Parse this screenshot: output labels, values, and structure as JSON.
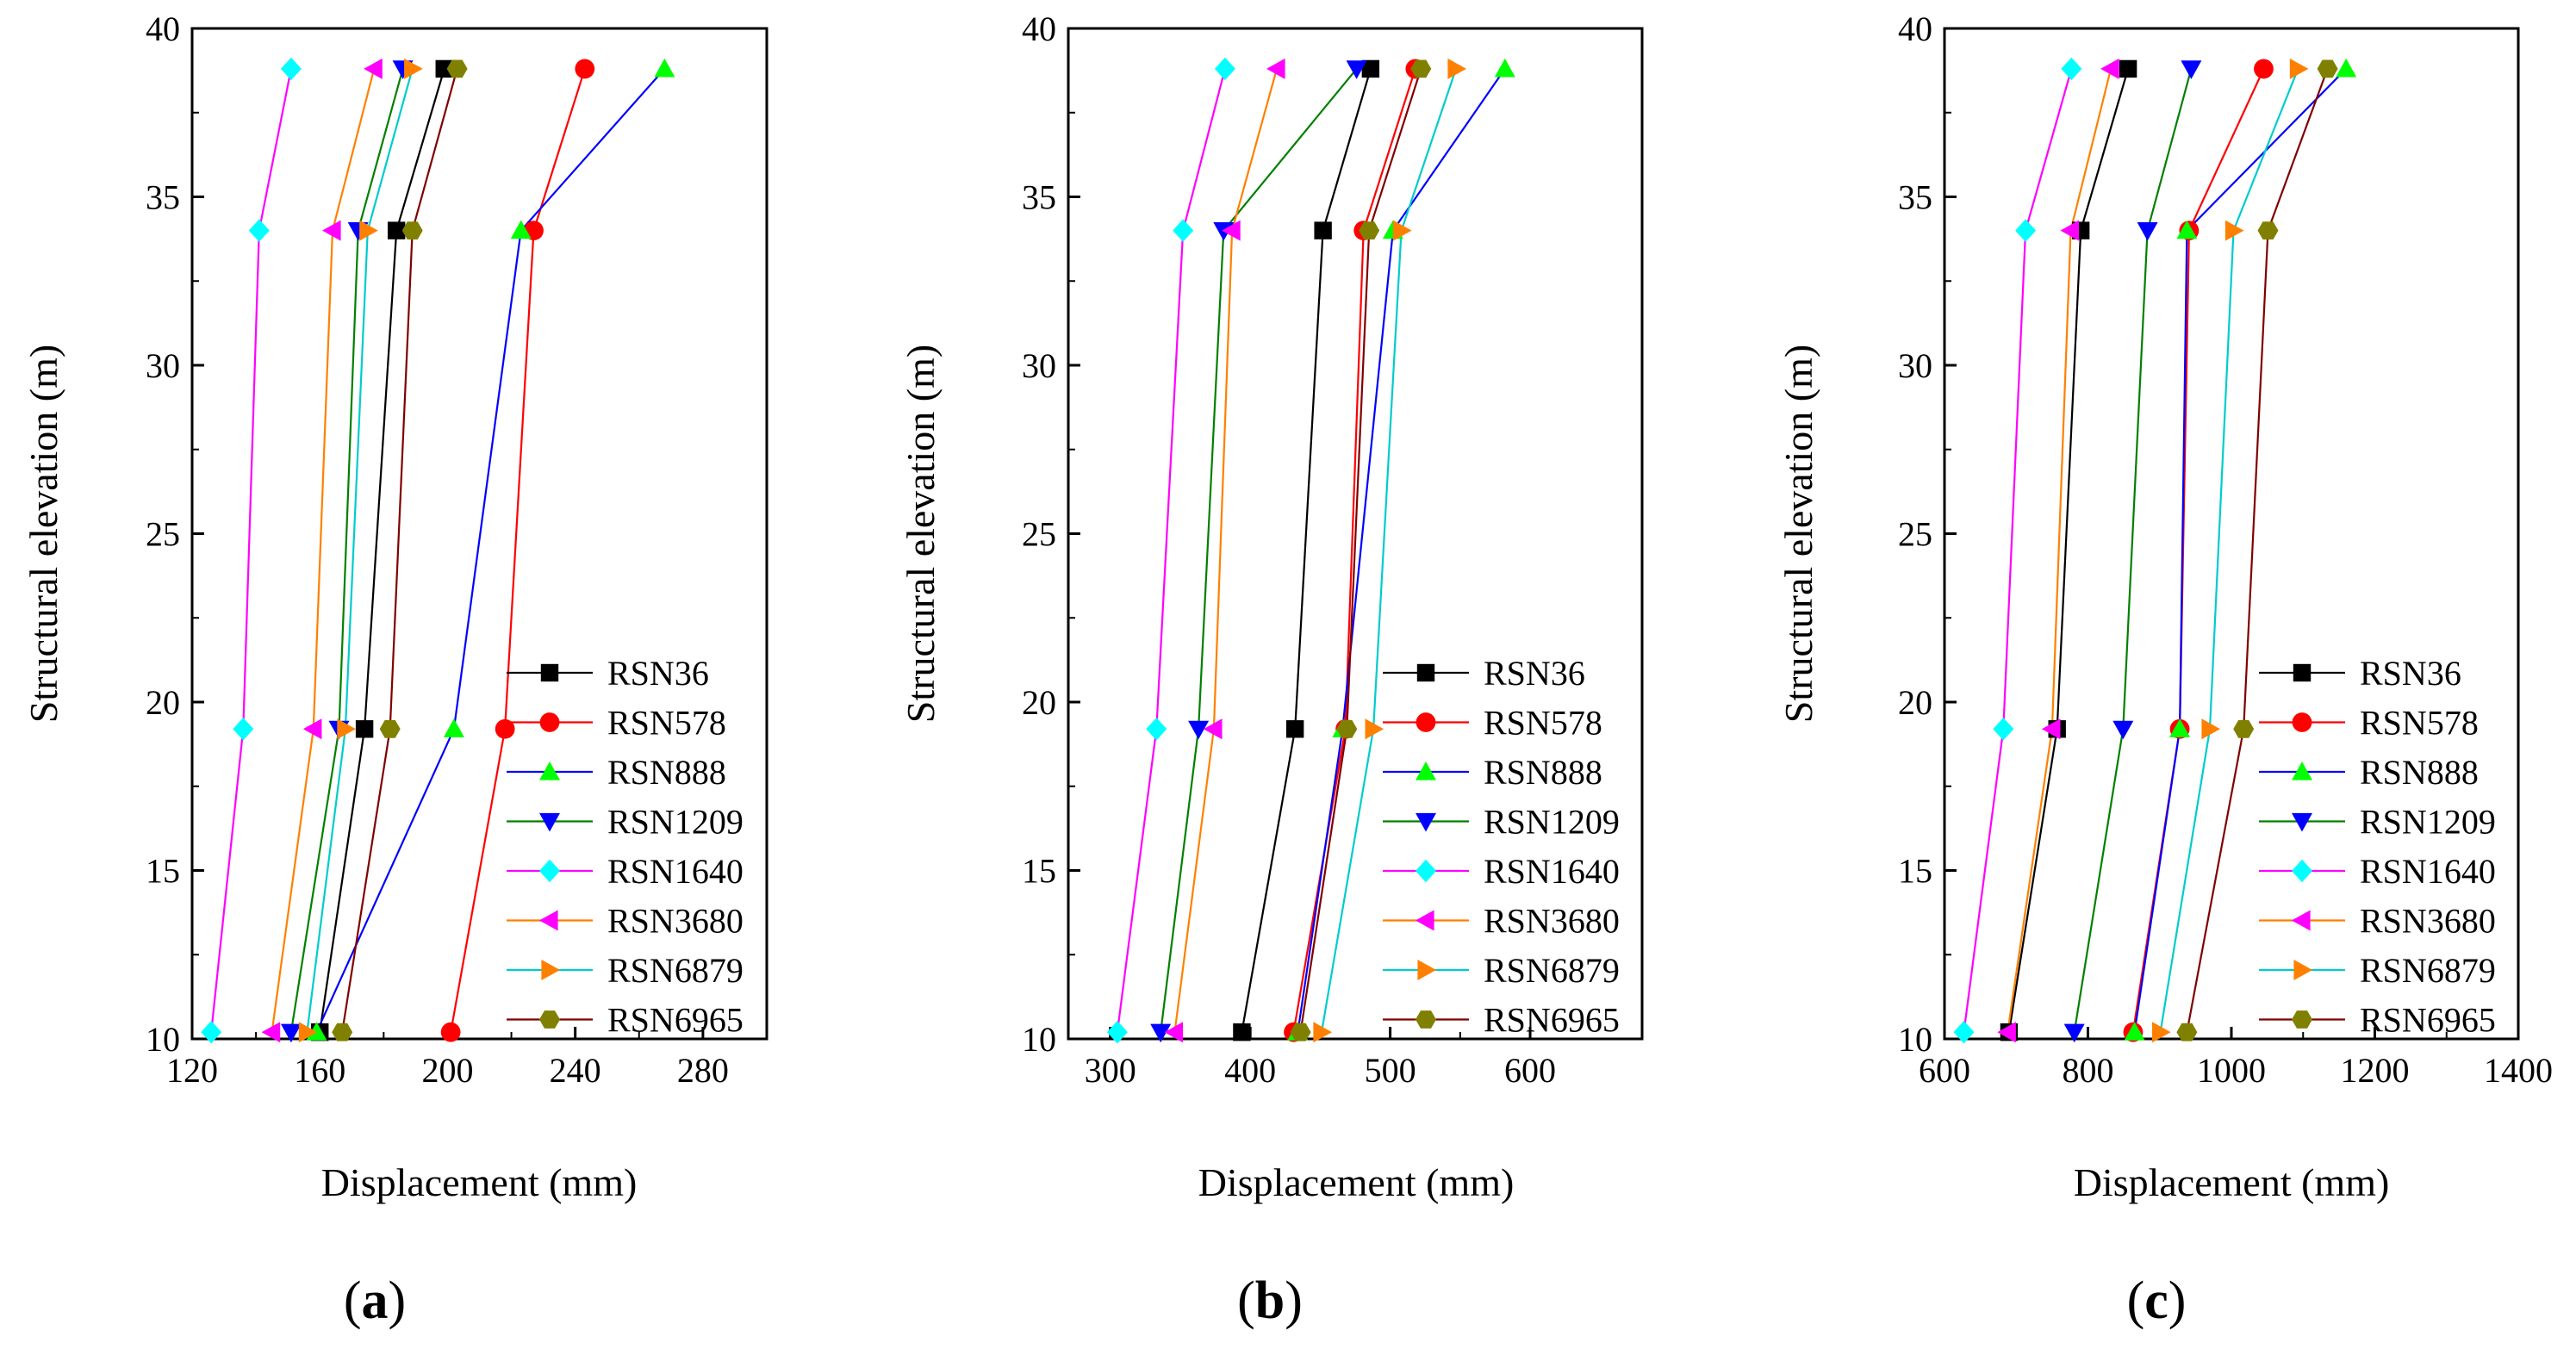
{
  "colors": {
    "RSN36": "#000000",
    "RSN578": "#ff0000",
    "RSN888": "#0000ff",
    "RSN1209": "#008000",
    "RSN1640": "#ff00ff",
    "RSN3680": "#ff8000",
    "RSN6879": "#00cccc",
    "RSN6965": "#800000"
  },
  "markers": {
    "RSN36": {
      "shape": "square",
      "fill": "#000000"
    },
    "RSN578": {
      "shape": "circle",
      "fill": "#ff0000"
    },
    "RSN888": {
      "shape": "triangle-up",
      "fill": "#00ff00"
    },
    "RSN1209": {
      "shape": "triangle-down",
      "fill": "#0000ff"
    },
    "RSN1640": {
      "shape": "diamond",
      "fill": "#00ffff"
    },
    "RSN3680": {
      "shape": "triangle-left",
      "fill": "#ff00ff"
    },
    "RSN6879": {
      "shape": "triangle-right",
      "fill": "#ff8000"
    },
    "RSN6965": {
      "shape": "hexagon",
      "fill": "#808000"
    }
  },
  "chart_data": [
    {
      "type": "line",
      "panel_label": "(a)",
      "xlabel": "Displacement (mm)",
      "ylabel": "Structural elevation (m)",
      "xlim": [
        120,
        300
      ],
      "ylim": [
        10,
        40
      ],
      "xticks": [
        "120",
        "160",
        "200",
        "240",
        "280"
      ],
      "yticks": [
        "10",
        "15",
        "20",
        "25",
        "30",
        "35",
        "40"
      ],
      "legend_position": "bottom-right",
      "y": [
        10.2,
        19.2,
        34.0,
        38.8
      ],
      "series": [
        {
          "name": "RSN36",
          "x": [
            160,
            174,
            184,
            199
          ]
        },
        {
          "name": "RSN578",
          "x": [
            201,
            218,
            227,
            243
          ]
        },
        {
          "name": "RSN888",
          "x": [
            159,
            202,
            223,
            268
          ]
        },
        {
          "name": "RSN1209",
          "x": [
            151,
            166,
            172,
            186
          ]
        },
        {
          "name": "RSN1640",
          "x": [
            126,
            136,
            141,
            151
          ]
        },
        {
          "name": "RSN3680",
          "x": [
            145,
            158,
            164,
            177
          ]
        },
        {
          "name": "RSN6879",
          "x": [
            156,
            168,
            175,
            189
          ]
        },
        {
          "name": "RSN6965",
          "x": [
            167,
            182,
            189,
            203
          ]
        }
      ]
    },
    {
      "type": "line",
      "panel_label": "(b)",
      "xlabel": "Displacement (mm)",
      "ylabel": "Structural elevation (m)",
      "xlim": [
        270,
        680
      ],
      "ylim": [
        10,
        40
      ],
      "xticks": [
        "300",
        "400",
        "500",
        "600"
      ],
      "yticks": [
        "10",
        "15",
        "20",
        "25",
        "30",
        "35",
        "40"
      ],
      "legend_position": "bottom-right",
      "y": [
        10.2,
        19.2,
        34.0,
        38.8
      ],
      "series": [
        {
          "name": "RSN36",
          "x": [
            394,
            432,
            452,
            486
          ]
        },
        {
          "name": "RSN578",
          "x": [
            431,
            468,
            481,
            518
          ]
        },
        {
          "name": "RSN888",
          "x": [
            434,
            466,
            502,
            582
          ]
        },
        {
          "name": "RSN1209",
          "x": [
            336,
            363,
            381,
            476
          ]
        },
        {
          "name": "RSN1640",
          "x": [
            305,
            333,
            352,
            382
          ]
        },
        {
          "name": "RSN3680",
          "x": [
            346,
            374,
            387,
            419
          ]
        },
        {
          "name": "RSN6879",
          "x": [
            451,
            488,
            508,
            547
          ]
        },
        {
          "name": "RSN6965",
          "x": [
            436,
            469,
            485,
            522
          ]
        }
      ]
    },
    {
      "type": "line",
      "panel_label": "(c)",
      "xlabel": "Displacement (mm)",
      "ylabel": "Structural elevation (m)",
      "xlim": [
        600,
        1400
      ],
      "ylim": [
        10,
        40
      ],
      "xticks": [
        "600",
        "800",
        "1000",
        "1200",
        "1400"
      ],
      "yticks": [
        "10",
        "15",
        "20",
        "25",
        "30",
        "35",
        "40"
      ],
      "legend_position": "bottom-right",
      "y": [
        10.2,
        19.2,
        34.0,
        38.8
      ],
      "series": [
        {
          "name": "RSN36",
          "x": [
            690,
            757,
            790,
            856
          ]
        },
        {
          "name": "RSN578",
          "x": [
            863,
            928,
            941,
            1045
          ]
        },
        {
          "name": "RSN888",
          "x": [
            865,
            928,
            938,
            1160
          ]
        },
        {
          "name": "RSN1209",
          "x": [
            781,
            849,
            883,
            944
          ]
        },
        {
          "name": "RSN1640",
          "x": [
            627,
            682,
            713,
            777
          ]
        },
        {
          "name": "RSN3680",
          "x": [
            688,
            750,
            776,
            832
          ]
        },
        {
          "name": "RSN6879",
          "x": [
            901,
            970,
            1003,
            1093
          ]
        },
        {
          "name": "RSN6965",
          "x": [
            938,
            1017,
            1051,
            1134
          ]
        }
      ]
    }
  ]
}
